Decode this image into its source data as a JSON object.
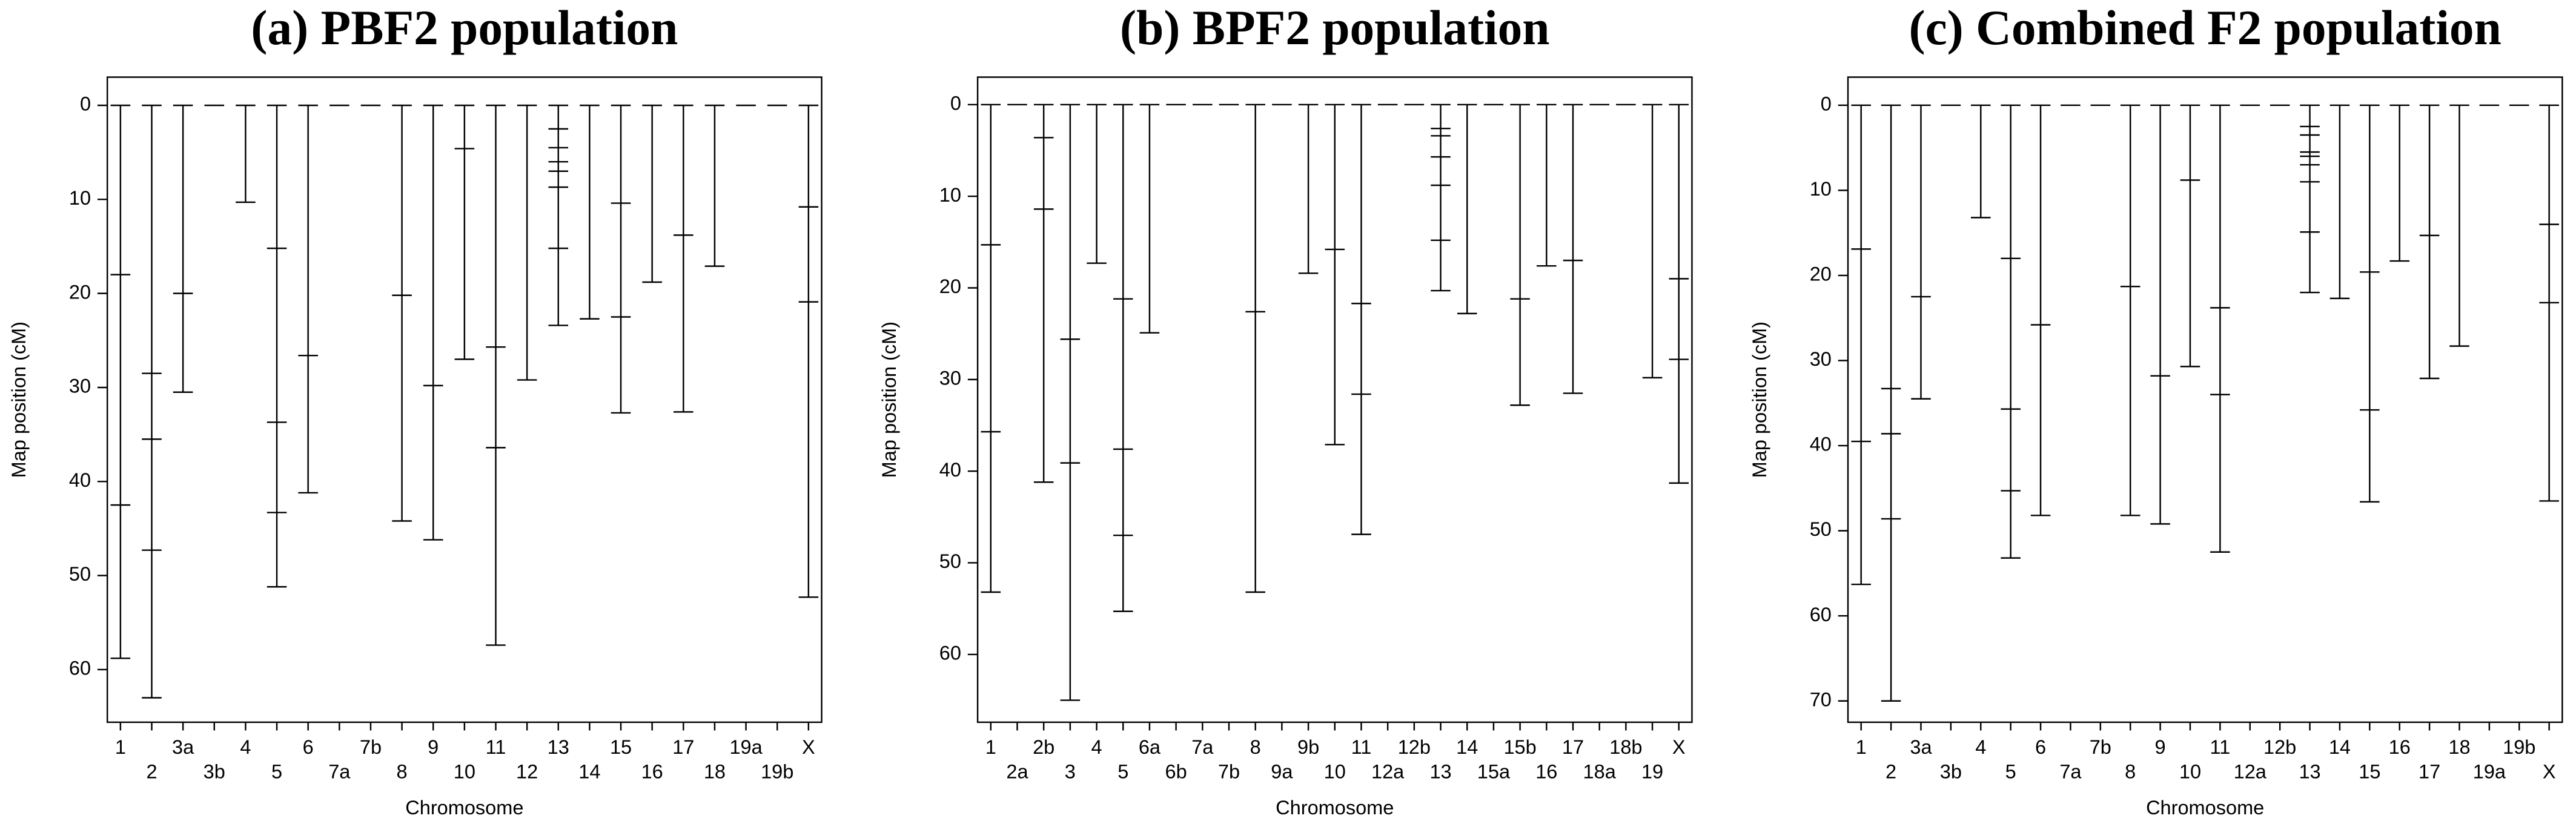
{
  "chart_data": [
    {
      "type": "genetic-map",
      "title": "(a) PBF2 population",
      "xlabel": "Chromosome",
      "ylabel": "Map position (cM)",
      "categories": [
        "1",
        "2",
        "3a",
        "3b",
        "4",
        "5",
        "6",
        "7a",
        "7b",
        "8",
        "9",
        "10",
        "11",
        "12",
        "13",
        "14",
        "15",
        "16",
        "17",
        "18",
        "19a",
        "19b",
        "X"
      ],
      "markers": [
        [
          0,
          18,
          42.5,
          58.8
        ],
        [
          0,
          28.5,
          35.5,
          47.3,
          63
        ],
        [
          0,
          20,
          30.5
        ],
        [
          0
        ],
        [
          0,
          10.3
        ],
        [
          0,
          15.2,
          33.7,
          43.3,
          51.2
        ],
        [
          0,
          26.6,
          41.2
        ],
        [
          0
        ],
        [
          0
        ],
        [
          0,
          20.2,
          44.2
        ],
        [
          0,
          29.8,
          46.2
        ],
        [
          0,
          4.6,
          27
        ],
        [
          0,
          25.7,
          36.4,
          57.4
        ],
        [
          0,
          29.2
        ],
        [
          0,
          2.5,
          4.5,
          6,
          7,
          8.7,
          15.2,
          23.4
        ],
        [
          0,
          22.7
        ],
        [
          0,
          10.4,
          22.5,
          32.7
        ],
        [
          0,
          18.8
        ],
        [
          0,
          13.8,
          32.6
        ],
        [
          0,
          17.1
        ],
        [
          0
        ],
        [
          0
        ],
        [
          0,
          10.8,
          20.9,
          52.3
        ]
      ],
      "ylim": [
        -3,
        65.6
      ],
      "yticks": [
        0,
        10,
        20,
        30,
        40,
        50,
        60
      ],
      "y_reversed": true
    },
    {
      "type": "genetic-map",
      "title": "(b) BPF2 population",
      "xlabel": "Chromosome",
      "ylabel": "Map position (cM)",
      "categories": [
        "1",
        "2a",
        "2b",
        "3",
        "4",
        "5",
        "6a",
        "6b",
        "7a",
        "7b",
        "8",
        "9a",
        "9b",
        "10",
        "11",
        "12a",
        "12b",
        "13",
        "14",
        "15a",
        "15b",
        "16",
        "17",
        "18a",
        "18b",
        "19",
        "X"
      ],
      "markers": [
        [
          0,
          15.3,
          35.7,
          53.2
        ],
        [
          0
        ],
        [
          0,
          3.6,
          11.4,
          41.2
        ],
        [
          0,
          25.6,
          39.1,
          65
        ],
        [
          0,
          17.3
        ],
        [
          0,
          21.2,
          37.6,
          47,
          55.3
        ],
        [
          0,
          24.9
        ],
        [
          0
        ],
        [
          0
        ],
        [
          0
        ],
        [
          0,
          22.6,
          53.2
        ],
        [
          0
        ],
        [
          0,
          18.4
        ],
        [
          0,
          15.8,
          37.1
        ],
        [
          0,
          21.7,
          31.6,
          46.9
        ],
        [
          0
        ],
        [
          0
        ],
        [
          0,
          2.6,
          3.4,
          5.7,
          8.8,
          14.8,
          20.3
        ],
        [
          0,
          22.8
        ],
        [
          0
        ],
        [
          0,
          21.2,
          32.8
        ],
        [
          0,
          17.6
        ],
        [
          0,
          17,
          31.5
        ],
        [
          0
        ],
        [
          0
        ],
        [
          0,
          29.8
        ],
        [
          0,
          19,
          27.8,
          41.3
        ]
      ],
      "ylim": [
        -3,
        67.4
      ],
      "yticks": [
        0,
        10,
        20,
        30,
        40,
        50,
        60
      ],
      "y_reversed": true
    },
    {
      "type": "genetic-map",
      "title": "(c) Combined F2 population",
      "xlabel": "Chromosome",
      "ylabel": "Map position (cM)",
      "categories": [
        "1",
        "2",
        "3a",
        "3b",
        "4",
        "5",
        "6",
        "7a",
        "7b",
        "8",
        "9",
        "10",
        "11",
        "12a",
        "12b",
        "13",
        "14",
        "15",
        "16",
        "17",
        "18",
        "19a",
        "19b",
        "X"
      ],
      "markers": [
        [
          0,
          16.9,
          39.5,
          56.3
        ],
        [
          0,
          33.3,
          38.6,
          48.6,
          70
        ],
        [
          0,
          22.5,
          34.5
        ],
        [
          0
        ],
        [
          0,
          13.2
        ],
        [
          0,
          18,
          35.7,
          45.3,
          53.2
        ],
        [
          0,
          25.8,
          48.2
        ],
        [
          0
        ],
        [
          0
        ],
        [
          0,
          21.3,
          48.2
        ],
        [
          0,
          31.8,
          49.2
        ],
        [
          0,
          8.8,
          30.7
        ],
        [
          0,
          23.8,
          34,
          52.5
        ],
        [
          0
        ],
        [
          0
        ],
        [
          0,
          2.5,
          3.5,
          5.5,
          6,
          7,
          9,
          14.9,
          22
        ],
        [
          0,
          22.7
        ],
        [
          0,
          19.6,
          35.8,
          46.6
        ],
        [
          0,
          18.3
        ],
        [
          0,
          15.3,
          32.1
        ],
        [
          0,
          28.3
        ],
        [
          0
        ],
        [
          0
        ],
        [
          0,
          14,
          23.2,
          46.5
        ]
      ],
      "ylim": [
        -3.3,
        72.5
      ],
      "yticks": [
        0,
        10,
        20,
        30,
        40,
        50,
        60,
        70
      ],
      "y_reversed": true
    }
  ]
}
